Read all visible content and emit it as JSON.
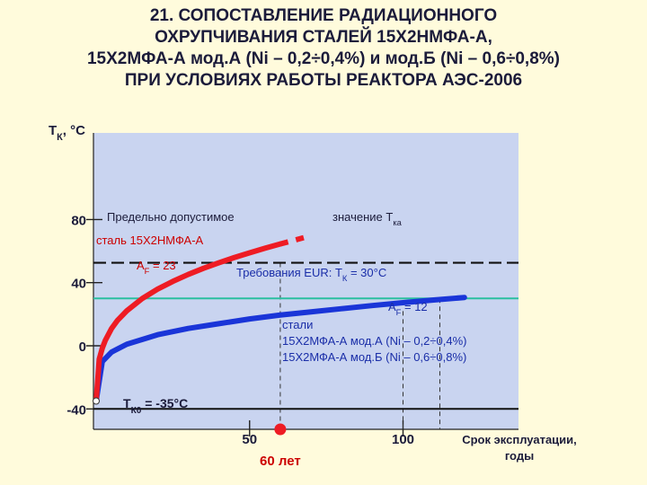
{
  "title_lines": [
    "21. СОПОСТАВЛЕНИЕ РАДИАЦИОННОГО",
    "ОХРУПЧИВАНИЯ СТАЛЕЙ 15Х2НМФА-А,",
    "15Х2МФА-А мод.А (Ni – 0,2÷0,4%) и мод.Б (Ni – 0,6÷0,8%)",
    "ПРИ УСЛОВИЯХ РАБОТЫ РЕАКТОРА АЭС-2006"
  ],
  "colors": {
    "plot_bg": "#c9d4f0",
    "red_curve": "#ee1c24",
    "blue_curve": "#1a35d8",
    "eur_line": "#2bbfa0",
    "text_dark": "#1b1b3a",
    "text_red": "#cc0000",
    "text_blue": "#1a2ea8"
  },
  "chart_data": {
    "type": "line",
    "ylabel": "Т",
    "ylabel_sub": "К",
    "ylabel_unit": ", °С",
    "xlabel_line1": "Срок эксплуатации,",
    "xlabel_line2": "годы",
    "xlim": [
      -5,
      125
    ],
    "ylim": [
      -50,
      105
    ],
    "y_ticks": [
      80,
      40,
      0,
      -40
    ],
    "y_tick_labels": [
      "80",
      "40",
      "0",
      "-40"
    ],
    "x_ticks": [
      50,
      100
    ],
    "x_tick_labels": [
      "50",
      "100"
    ],
    "marker_year": 60,
    "marker_label": "60 лет",
    "limit_value": 52.6,
    "eur_value": 30,
    "initial_value": -35,
    "bottom_line_value": -40,
    "dashed_verticals_x": [
      60,
      100,
      112
    ],
    "series": [
      {
        "name": "сталь 15Х2НМФА-А",
        "af_label": "A",
        "af_sub": "F",
        "af_value": " = 23",
        "x": [
          0,
          1,
          2,
          3,
          5,
          7,
          10,
          15,
          20,
          25,
          30,
          35,
          40,
          45,
          50,
          55,
          60
        ],
        "y": [
          -35,
          -8.5,
          -1.5,
          3.5,
          10.9,
          16.2,
          22.2,
          29.9,
          35.9,
          40.8,
          45.2,
          49.1,
          52.6,
          55.9,
          58.9,
          61.8,
          64.5
        ],
        "x_ext": [
          60,
          65,
          70
        ],
        "y_ext": [
          64.5,
          67.1,
          69.7
        ]
      },
      {
        "name": "стали",
        "af_label": "A",
        "af_sub": "F",
        "af_value": " = 12",
        "x": [
          0,
          2,
          5,
          10,
          15,
          20,
          30,
          40,
          50,
          60,
          70,
          80,
          90,
          100,
          110,
          120
        ],
        "y": [
          -35,
          -10,
          -4,
          1,
          4,
          7,
          11,
          14,
          17,
          19.5,
          21.5,
          23.5,
          25.5,
          27.3,
          29,
          30.6
        ]
      }
    ],
    "annotations": {
      "limit_left": "Предельно  допустимое",
      "limit_right": "значение  Т",
      "limit_right_sub": "ка",
      "steel_a": "сталь 15Х2НМФА-А",
      "eur_text": "Требования EUR: Т",
      "eur_sub": "К",
      "eur_value_text": " = 30°С",
      "steels_line1": "стали",
      "steels_line2": "15Х2МФА-А мод.А (Ni – 0,2÷0,4%)",
      "steels_line3": "15Х2МФА-А мод.Б (Ni – 0,6÷0,8%)",
      "tk0_label": "Т",
      "tk0_sub": "К0",
      "tk0_value": " = -35°С"
    }
  }
}
